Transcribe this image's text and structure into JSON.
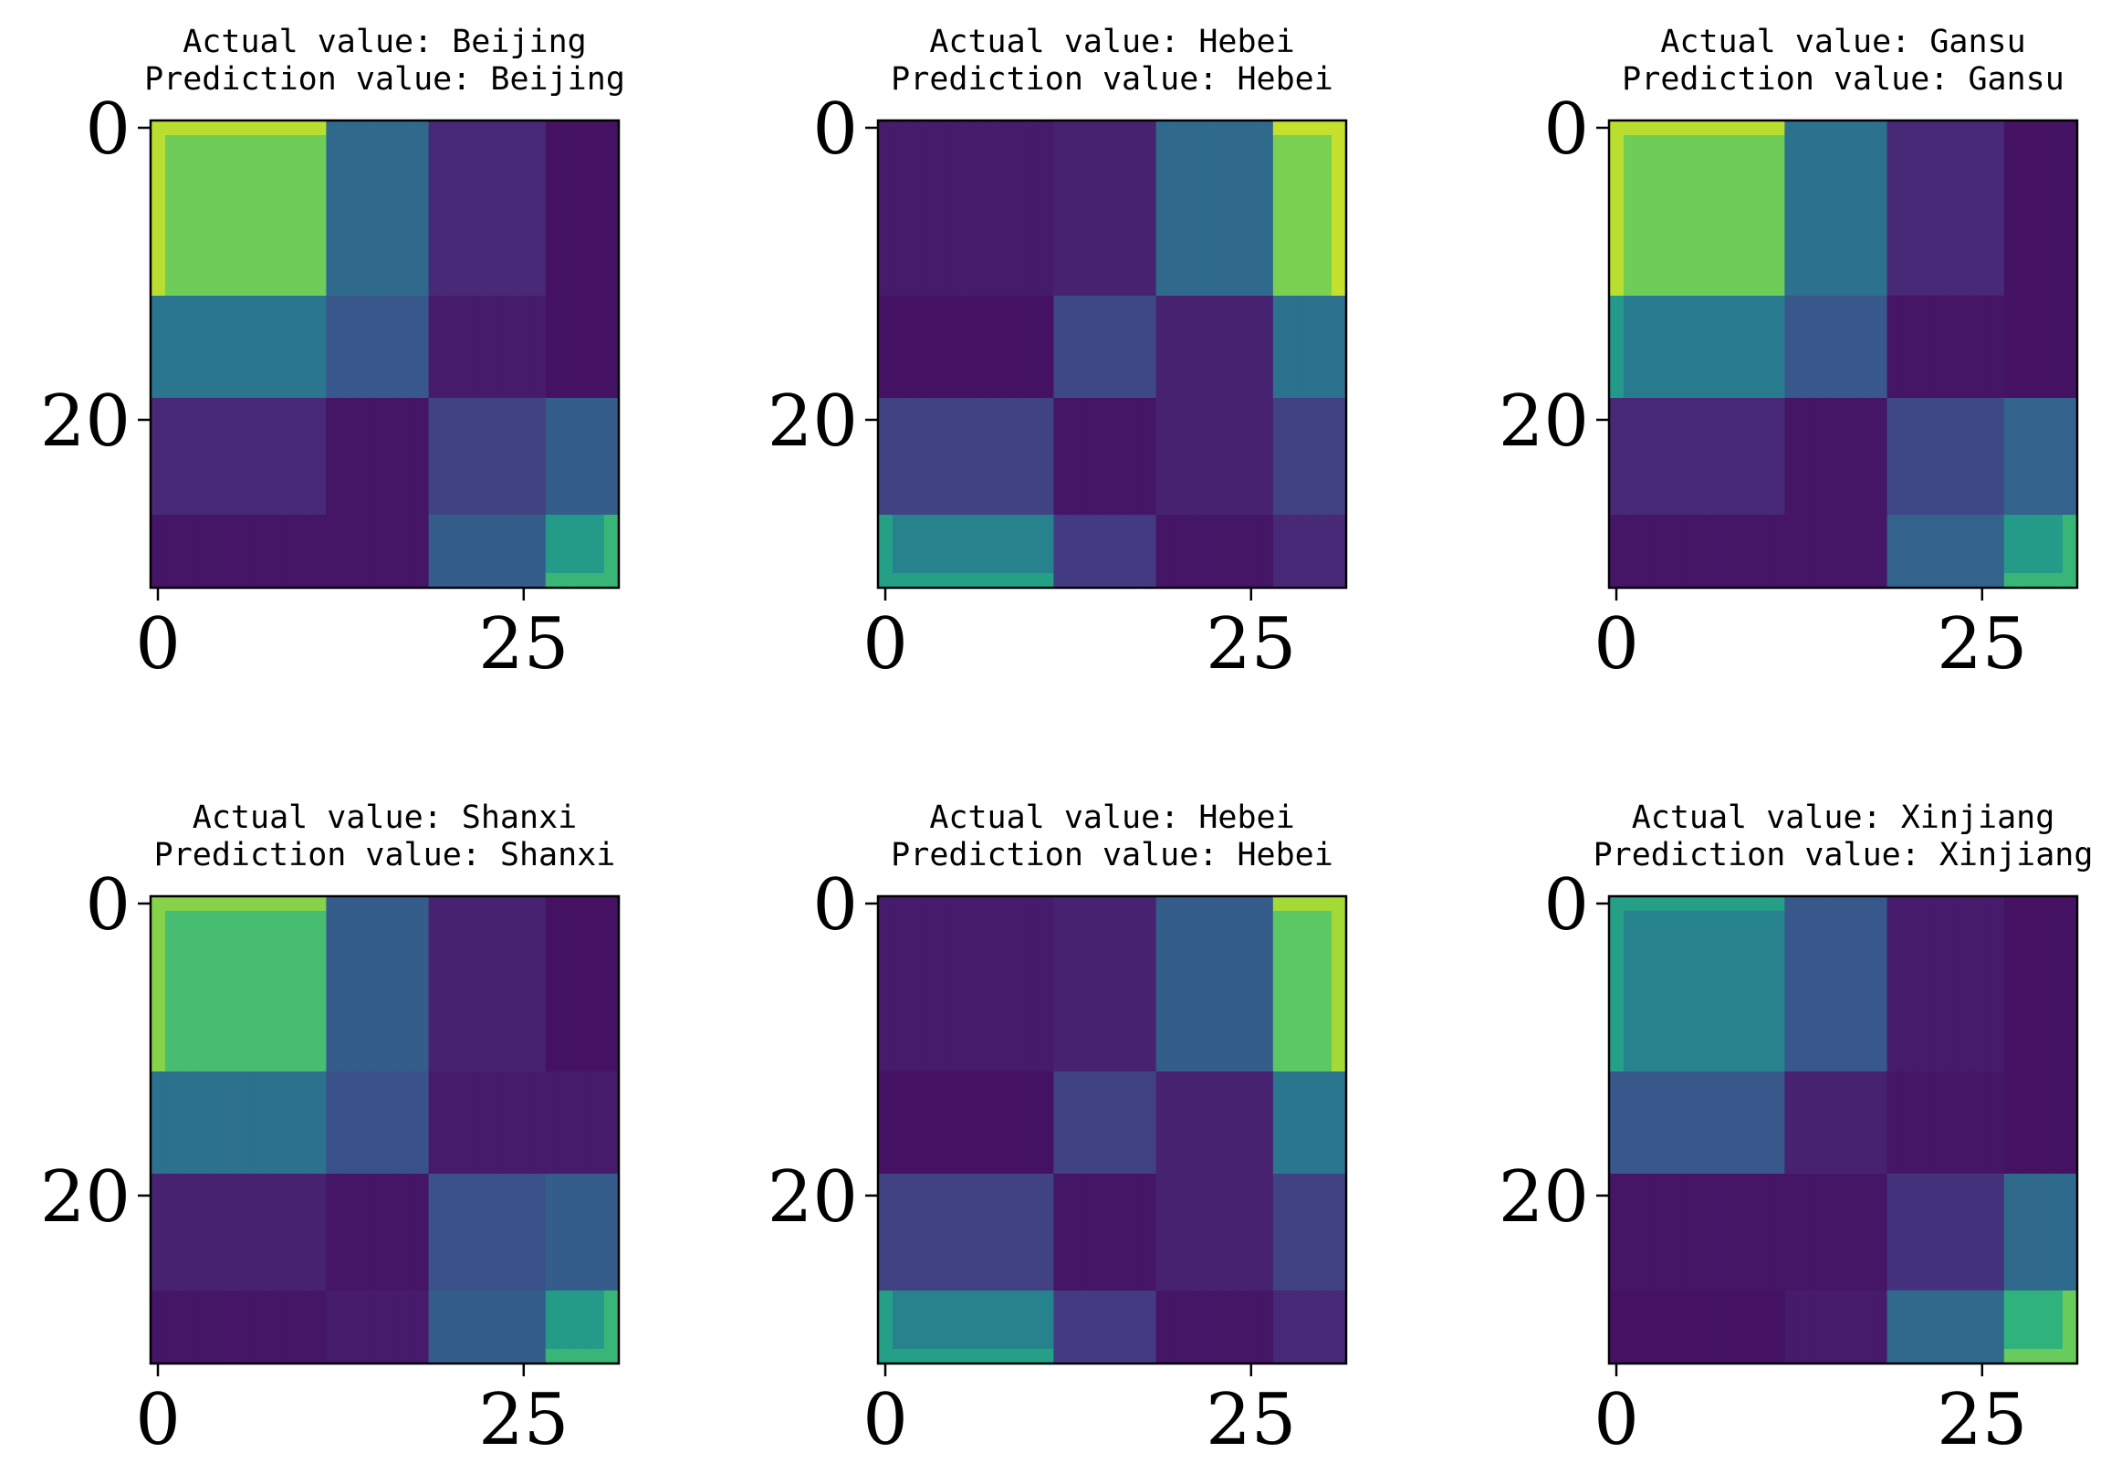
{
  "chart_data": {
    "type": "heatmap",
    "colormap": "viridis",
    "grid_size": 32,
    "grid": false,
    "xticks": [
      0,
      25
    ],
    "yticks": [
      0,
      20
    ],
    "xlim": [
      -0.5,
      31.5
    ],
    "ylim": [
      31.5,
      -0.5
    ],
    "cell_groups": [
      [
        0,
        0,
        0,
        0,
        0,
        0,
        0,
        0,
        0,
        0,
        0,
        0,
        1,
        1,
        1,
        1,
        1,
        1,
        1,
        2,
        2,
        2,
        2,
        2,
        2,
        2,
        2,
        3,
        3,
        3,
        3,
        3
      ]
    ],
    "panels": [
      {
        "actual_label": "Actual value: Beijing",
        "prediction_label": "Prediction value: Beijing",
        "block_matrix": [
          [
            0.78,
            0.35,
            0.12,
            0.05
          ],
          [
            0.4,
            0.28,
            0.08,
            0.05
          ],
          [
            0.12,
            0.06,
            0.2,
            0.3
          ],
          [
            0.06,
            0.06,
            0.3,
            0.55
          ]
        ]
      },
      {
        "actual_label": "Actual value: Hebei",
        "prediction_label": "Prediction value: Hebei",
        "block_matrix": [
          [
            0.08,
            0.1,
            0.35,
            0.8
          ],
          [
            0.05,
            0.22,
            0.1,
            0.38
          ],
          [
            0.2,
            0.06,
            0.1,
            0.2
          ],
          [
            0.45,
            0.18,
            0.06,
            0.12
          ]
        ]
      },
      {
        "actual_label": "Actual value: Gansu",
        "prediction_label": "Prediction value: Gansu",
        "block_matrix": [
          [
            0.78,
            0.38,
            0.12,
            0.05
          ],
          [
            0.42,
            0.28,
            0.06,
            0.05
          ],
          [
            0.12,
            0.06,
            0.22,
            0.32
          ],
          [
            0.06,
            0.06,
            0.32,
            0.55
          ]
        ]
      },
      {
        "actual_label": "Actual value: Shanxi",
        "prediction_label": "Prediction value: Shanxi",
        "block_matrix": [
          [
            0.7,
            0.3,
            0.1,
            0.05
          ],
          [
            0.38,
            0.25,
            0.08,
            0.08
          ],
          [
            0.1,
            0.06,
            0.25,
            0.3
          ],
          [
            0.06,
            0.08,
            0.3,
            0.55
          ]
        ]
      },
      {
        "actual_label": "Actual value: Hebei",
        "prediction_label": "Prediction value: Hebei",
        "block_matrix": [
          [
            0.08,
            0.1,
            0.3,
            0.75
          ],
          [
            0.05,
            0.2,
            0.1,
            0.4
          ],
          [
            0.2,
            0.06,
            0.1,
            0.2
          ],
          [
            0.45,
            0.18,
            0.06,
            0.12
          ]
        ]
      },
      {
        "actual_label": "Actual value: Xinjiang",
        "prediction_label": "Prediction value: Xinjiang",
        "block_matrix": [
          [
            0.45,
            0.28,
            0.08,
            0.05
          ],
          [
            0.28,
            0.1,
            0.06,
            0.05
          ],
          [
            0.06,
            0.06,
            0.15,
            0.35
          ],
          [
            0.05,
            0.08,
            0.35,
            0.65
          ]
        ]
      }
    ]
  }
}
